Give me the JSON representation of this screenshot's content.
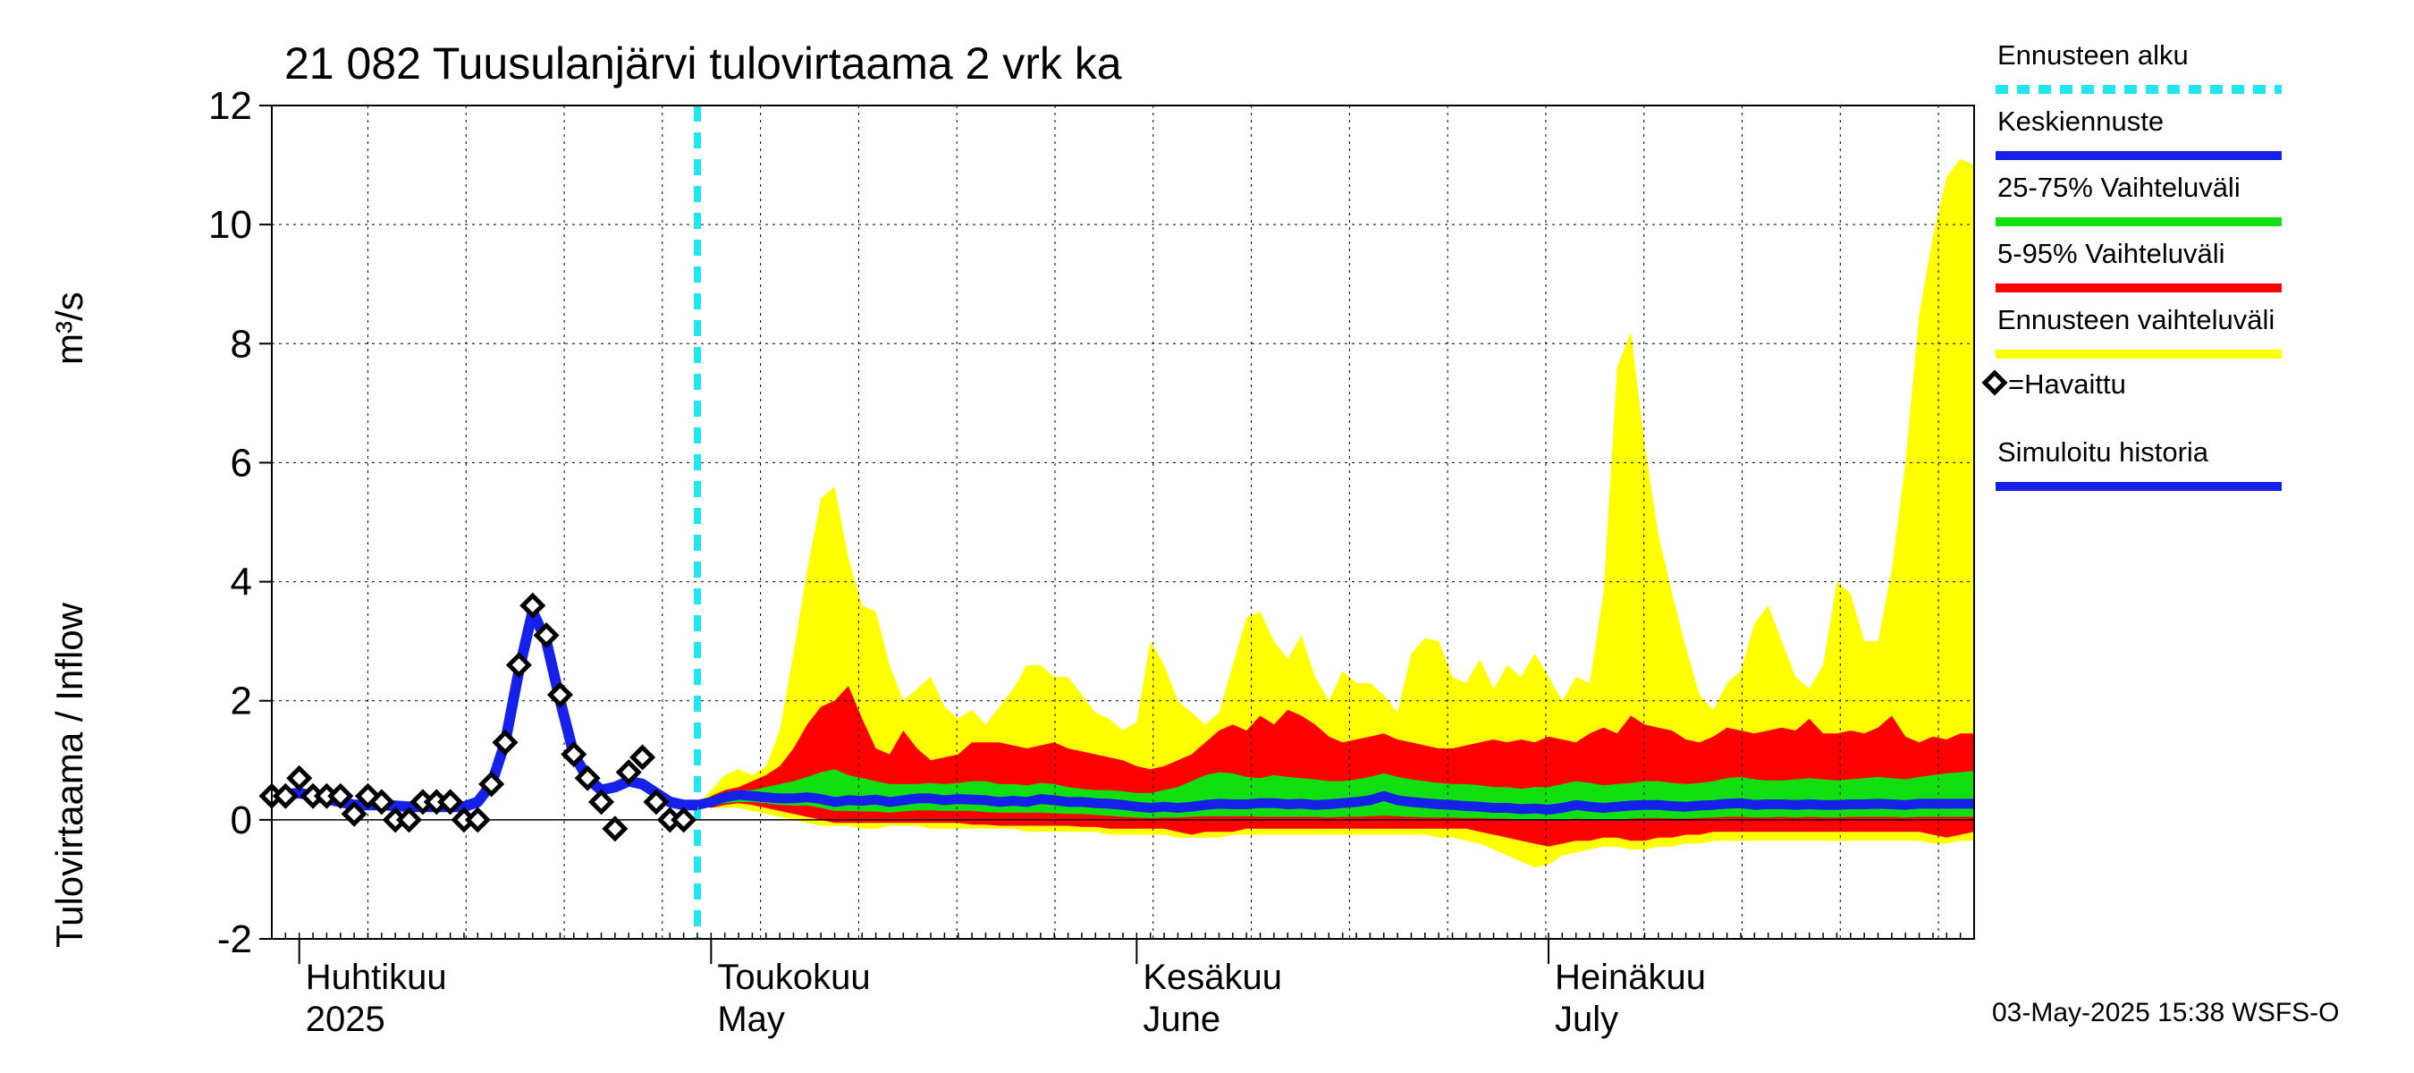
{
  "chart_data": {
    "type": "area",
    "title": "21 082 Tuusulanjärvi tulovirtaama 2 vrk ka",
    "ylabel": "Tulovirtaama / Inflow",
    "yunit": "m³/s",
    "ylim": [
      -2,
      12
    ],
    "yticks": [
      -2,
      0,
      2,
      4,
      6,
      8,
      10,
      12
    ],
    "ytick_labels": [
      "-2",
      "0",
      "2",
      "4",
      "6",
      "8",
      "10",
      "12"
    ],
    "grid": true,
    "x_unit": "days since 2025-03-30",
    "xlim": [
      0,
      124
    ],
    "forecast_start_day": 31,
    "months": [
      {
        "fi": "Huhtikuu",
        "en": "2025",
        "day": 2
      },
      {
        "fi": "Toukokuu",
        "en": "May",
        "day": 32
      },
      {
        "fi": "Kesäkuu",
        "en": "June",
        "day": 63
      },
      {
        "fi": "Heinäkuu",
        "en": "July",
        "day": 93
      }
    ],
    "observed": {
      "name": "=Havaittu",
      "x": [
        0,
        1,
        2,
        3,
        4,
        5,
        6,
        7,
        8,
        9,
        10,
        11,
        12,
        13,
        14,
        15,
        16,
        17,
        18,
        19,
        20,
        21,
        22,
        23,
        24,
        25,
        26,
        27,
        28,
        29,
        30
      ],
      "y": [
        0.4,
        0.4,
        0.7,
        0.4,
        0.4,
        0.4,
        0.1,
        0.4,
        0.3,
        0.0,
        0.0,
        0.3,
        0.3,
        0.3,
        0.0,
        0.0,
        0.6,
        1.3,
        2.6,
        3.6,
        3.1,
        2.1,
        1.1,
        0.7,
        0.3,
        -0.15,
        0.8,
        1.05,
        0.3,
        0.0,
        0.0
      ]
    },
    "simulated_history": {
      "name": "Simuloitu historia",
      "x": [
        0,
        2,
        4,
        6,
        8,
        10,
        12,
        14,
        15,
        16,
        17,
        18,
        19,
        20,
        21,
        22,
        23,
        24,
        25,
        26,
        27,
        28,
        29,
        30,
        31
      ],
      "y": [
        0.4,
        0.45,
        0.35,
        0.25,
        0.25,
        0.22,
        0.22,
        0.22,
        0.3,
        0.6,
        1.3,
        2.5,
        3.5,
        3.0,
        2.0,
        1.1,
        0.7,
        0.5,
        0.55,
        0.65,
        0.6,
        0.45,
        0.3,
        0.25,
        0.25
      ]
    },
    "forecast": {
      "x": [
        31,
        32,
        33,
        34,
        35,
        36,
        37,
        38,
        39,
        40,
        41,
        42,
        43,
        44,
        45,
        46,
        47,
        48,
        49,
        50,
        51,
        52,
        53,
        54,
        55,
        56,
        57,
        58,
        59,
        60,
        61,
        62,
        63,
        64,
        65,
        66,
        67,
        68,
        69,
        70,
        71,
        72,
        73,
        74,
        75,
        76,
        77,
        78,
        79,
        80,
        81,
        82,
        83,
        84,
        85,
        86,
        87,
        88,
        89,
        90,
        91,
        92,
        93,
        94,
        95,
        96,
        97,
        98,
        99,
        100,
        101,
        102,
        103,
        104,
        105,
        106,
        107,
        108,
        109,
        110,
        111,
        112,
        113,
        114,
        115,
        116,
        117,
        118,
        119,
        120,
        121,
        122,
        123,
        124
      ],
      "mean": [
        0.25,
        0.3,
        0.38,
        0.42,
        0.4,
        0.38,
        0.36,
        0.36,
        0.38,
        0.35,
        0.3,
        0.33,
        0.32,
        0.34,
        0.3,
        0.33,
        0.36,
        0.36,
        0.33,
        0.35,
        0.34,
        0.33,
        0.3,
        0.32,
        0.3,
        0.35,
        0.33,
        0.3,
        0.3,
        0.28,
        0.27,
        0.25,
        0.22,
        0.2,
        0.22,
        0.2,
        0.22,
        0.25,
        0.27,
        0.26,
        0.26,
        0.28,
        0.28,
        0.26,
        0.27,
        0.25,
        0.26,
        0.28,
        0.3,
        0.33,
        0.4,
        0.33,
        0.3,
        0.28,
        0.26,
        0.25,
        0.23,
        0.22,
        0.2,
        0.2,
        0.18,
        0.19,
        0.17,
        0.2,
        0.25,
        0.22,
        0.2,
        0.22,
        0.24,
        0.25,
        0.25,
        0.23,
        0.22,
        0.24,
        0.25,
        0.27,
        0.28,
        0.25,
        0.26,
        0.26,
        0.25,
        0.26,
        0.25,
        0.25,
        0.26,
        0.26,
        0.27,
        0.26,
        0.25,
        0.27,
        0.27,
        0.27,
        0.27,
        0.27
      ],
      "p25": [
        0.25,
        0.22,
        0.28,
        0.3,
        0.3,
        0.28,
        0.25,
        0.24,
        0.24,
        0.2,
        0.15,
        0.15,
        0.14,
        0.14,
        0.12,
        0.14,
        0.16,
        0.16,
        0.15,
        0.15,
        0.15,
        0.13,
        0.12,
        0.12,
        0.12,
        0.12,
        0.11,
        0.1,
        0.1,
        0.08,
        0.07,
        0.05,
        0.04,
        0.03,
        0.04,
        0.04,
        0.05,
        0.06,
        0.06,
        0.06,
        0.06,
        0.05,
        0.05,
        0.05,
        0.05,
        0.05,
        0.04,
        0.05,
        0.05,
        0.06,
        0.07,
        0.06,
        0.05,
        0.04,
        0.04,
        0.04,
        0.03,
        0.03,
        0.02,
        0.02,
        0.0,
        0.0,
        0.0,
        0.0,
        0.02,
        0.01,
        0.0,
        0.0,
        0.02,
        0.03,
        0.03,
        0.02,
        0.02,
        0.03,
        0.04,
        0.05,
        0.05,
        0.04,
        0.04,
        0.05,
        0.04,
        0.05,
        0.04,
        0.04,
        0.05,
        0.05,
        0.05,
        0.05,
        0.04,
        0.05,
        0.05,
        0.05,
        0.05,
        0.05
      ],
      "p75": [
        0.25,
        0.38,
        0.45,
        0.5,
        0.5,
        0.55,
        0.6,
        0.65,
        0.72,
        0.8,
        0.85,
        0.75,
        0.7,
        0.65,
        0.6,
        0.6,
        0.6,
        0.62,
        0.6,
        0.62,
        0.65,
        0.65,
        0.6,
        0.6,
        0.58,
        0.62,
        0.6,
        0.55,
        0.52,
        0.5,
        0.5,
        0.48,
        0.45,
        0.45,
        0.5,
        0.55,
        0.65,
        0.75,
        0.8,
        0.78,
        0.72,
        0.7,
        0.75,
        0.72,
        0.7,
        0.68,
        0.65,
        0.65,
        0.68,
        0.72,
        0.78,
        0.72,
        0.68,
        0.65,
        0.62,
        0.6,
        0.6,
        0.58,
        0.55,
        0.55,
        0.52,
        0.55,
        0.55,
        0.6,
        0.65,
        0.62,
        0.58,
        0.6,
        0.62,
        0.65,
        0.65,
        0.62,
        0.6,
        0.62,
        0.65,
        0.7,
        0.72,
        0.68,
        0.66,
        0.66,
        0.68,
        0.7,
        0.68,
        0.66,
        0.68,
        0.7,
        0.72,
        0.7,
        0.68,
        0.72,
        0.75,
        0.78,
        0.8,
        0.82
      ],
      "p5": [
        0.25,
        0.2,
        0.25,
        0.28,
        0.25,
        0.2,
        0.15,
        0.1,
        0.05,
        0.0,
        -0.05,
        -0.05,
        -0.05,
        -0.05,
        -0.05,
        -0.05,
        -0.05,
        -0.05,
        -0.05,
        -0.05,
        -0.08,
        -0.08,
        -0.1,
        -0.1,
        -0.1,
        -0.1,
        -0.1,
        -0.1,
        -0.12,
        -0.12,
        -0.15,
        -0.15,
        -0.15,
        -0.15,
        -0.15,
        -0.2,
        -0.25,
        -0.2,
        -0.2,
        -0.2,
        -0.15,
        -0.15,
        -0.15,
        -0.15,
        -0.15,
        -0.15,
        -0.15,
        -0.15,
        -0.15,
        -0.15,
        -0.15,
        -0.15,
        -0.15,
        -0.15,
        -0.15,
        -0.15,
        -0.15,
        -0.2,
        -0.25,
        -0.3,
        -0.35,
        -0.4,
        -0.45,
        -0.4,
        -0.35,
        -0.35,
        -0.3,
        -0.3,
        -0.35,
        -0.35,
        -0.3,
        -0.3,
        -0.25,
        -0.25,
        -0.2,
        -0.2,
        -0.2,
        -0.2,
        -0.2,
        -0.2,
        -0.2,
        -0.2,
        -0.2,
        -0.2,
        -0.2,
        -0.2,
        -0.2,
        -0.2,
        -0.2,
        -0.2,
        -0.25,
        -0.3,
        -0.25,
        -0.2
      ],
      "p95": [
        0.25,
        0.4,
        0.5,
        0.55,
        0.65,
        0.75,
        0.9,
        1.2,
        1.6,
        1.9,
        2.0,
        2.25,
        1.7,
        1.2,
        1.1,
        1.5,
        1.2,
        1.0,
        1.05,
        1.1,
        1.3,
        1.3,
        1.3,
        1.25,
        1.2,
        1.25,
        1.3,
        1.2,
        1.15,
        1.1,
        1.05,
        1.0,
        0.9,
        0.85,
        0.9,
        1.0,
        1.1,
        1.3,
        1.5,
        1.6,
        1.5,
        1.75,
        1.6,
        1.85,
        1.75,
        1.6,
        1.4,
        1.3,
        1.35,
        1.4,
        1.45,
        1.35,
        1.3,
        1.25,
        1.2,
        1.2,
        1.25,
        1.3,
        1.35,
        1.3,
        1.35,
        1.3,
        1.4,
        1.35,
        1.3,
        1.45,
        1.55,
        1.45,
        1.75,
        1.6,
        1.55,
        1.5,
        1.35,
        1.3,
        1.4,
        1.55,
        1.5,
        1.45,
        1.5,
        1.55,
        1.5,
        1.7,
        1.45,
        1.45,
        1.5,
        1.45,
        1.55,
        1.75,
        1.4,
        1.3,
        1.4,
        1.35,
        1.45,
        1.45
      ],
      "min": [
        0.25,
        0.2,
        0.2,
        0.2,
        0.15,
        0.1,
        0.05,
        0.0,
        -0.05,
        -0.1,
        -0.1,
        -0.1,
        -0.15,
        -0.15,
        -0.1,
        -0.1,
        -0.1,
        -0.15,
        -0.15,
        -0.15,
        -0.15,
        -0.15,
        -0.15,
        -0.15,
        -0.2,
        -0.2,
        -0.2,
        -0.2,
        -0.2,
        -0.2,
        -0.25,
        -0.25,
        -0.25,
        -0.25,
        -0.25,
        -0.3,
        -0.3,
        -0.3,
        -0.3,
        -0.25,
        -0.25,
        -0.25,
        -0.25,
        -0.25,
        -0.25,
        -0.25,
        -0.25,
        -0.25,
        -0.25,
        -0.25,
        -0.25,
        -0.25,
        -0.25,
        -0.25,
        -0.3,
        -0.3,
        -0.35,
        -0.4,
        -0.5,
        -0.6,
        -0.7,
        -0.8,
        -0.75,
        -0.6,
        -0.55,
        -0.5,
        -0.45,
        -0.45,
        -0.5,
        -0.5,
        -0.45,
        -0.45,
        -0.4,
        -0.4,
        -0.35,
        -0.35,
        -0.35,
        -0.35,
        -0.35,
        -0.35,
        -0.35,
        -0.35,
        -0.35,
        -0.35,
        -0.35,
        -0.35,
        -0.35,
        -0.35,
        -0.35,
        -0.35,
        -0.4,
        -0.4,
        -0.35,
        -0.35
      ],
      "max": [
        0.25,
        0.5,
        0.75,
        0.85,
        0.75,
        0.9,
        1.5,
        2.8,
        4.2,
        5.4,
        5.6,
        4.4,
        3.6,
        3.5,
        2.6,
        2.0,
        2.2,
        2.4,
        1.9,
        1.7,
        1.85,
        1.6,
        1.9,
        2.2,
        2.6,
        2.6,
        2.4,
        2.4,
        2.1,
        1.8,
        1.7,
        1.5,
        1.65,
        3.0,
        2.6,
        2.0,
        1.8,
        1.6,
        1.8,
        2.6,
        3.4,
        3.5,
        3.0,
        2.7,
        3.1,
        2.4,
        2.0,
        2.5,
        2.3,
        2.3,
        2.1,
        1.8,
        2.8,
        3.05,
        3.0,
        2.4,
        2.3,
        2.7,
        2.2,
        2.6,
        2.4,
        2.8,
        2.4,
        2.0,
        2.4,
        2.3,
        3.8,
        7.6,
        8.2,
        6.3,
        4.8,
        3.8,
        2.9,
        2.1,
        1.85,
        2.3,
        2.5,
        3.3,
        3.6,
        3.0,
        2.4,
        2.2,
        2.6,
        4.0,
        3.8,
        3.0,
        3.0,
        4.2,
        6.0,
        8.5,
        9.8,
        10.8,
        11.1,
        11.0
      ]
    },
    "legend": [
      {
        "label": "Ennusteen alku",
        "color": "#22e6ee",
        "style": "dashed"
      },
      {
        "label": "Keskiennuste",
        "color": "#1520e8",
        "style": "solid"
      },
      {
        "label": "25-75% Vaihteluväli",
        "color": "#10e010",
        "style": "solid"
      },
      {
        "label": "5-95% Vaihteluväli",
        "color": "#ff0000",
        "style": "solid"
      },
      {
        "label": "Ennusteen vaihteluväli",
        "color": "#ffff00",
        "style": "solid"
      },
      {
        "label": "=Havaittu",
        "color": "#000000",
        "style": "marker"
      },
      {
        "label": "Simuloitu historia",
        "color": "#1520e8",
        "style": "solid"
      }
    ],
    "footer": "03-May-2025 15:38 WSFS-O"
  }
}
